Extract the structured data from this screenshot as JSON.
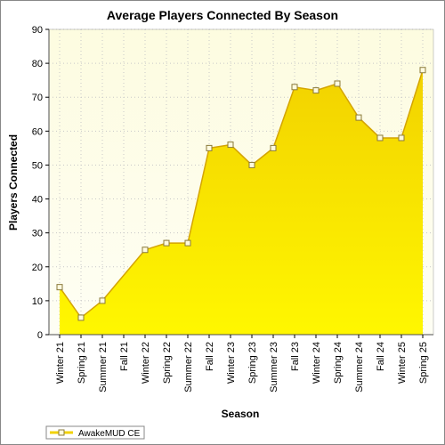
{
  "chart_data": {
    "type": "area",
    "title": "Average Players Connected By Season",
    "xlabel": "Season",
    "ylabel": "Players Connected",
    "ylim": [
      0,
      90
    ],
    "yticks": [
      0,
      10,
      20,
      30,
      40,
      50,
      60,
      70,
      80,
      90
    ],
    "categories": [
      "Winter 21",
      "Spring 21",
      "Summer 21",
      "Fall 21",
      "Winter 22",
      "Spring 22",
      "Summer 22",
      "Fall 22",
      "Winter 23",
      "Spring 23",
      "Summer 23",
      "Fall 23",
      "Winter 24",
      "Spring 24",
      "Summer 24",
      "Fall 24",
      "Winter 25",
      "Spring 25"
    ],
    "series": [
      {
        "name": "AwakeMUD CE",
        "values": [
          14,
          5,
          10,
          null,
          25,
          27,
          27,
          55,
          56,
          50,
          55,
          73,
          72,
          74,
          64,
          58,
          58,
          78
        ]
      }
    ],
    "grid": true,
    "legend": "bottom-left",
    "colors": {
      "plot_background_top": "#fdfce0",
      "plot_background_bottom": "#fefef4",
      "fill_top": "#f2d200",
      "fill_bottom": "#fff700",
      "line": "#d4a400",
      "marker_fill": "#fffbe0",
      "marker_stroke": "#8a7a3a",
      "grid": "#c8c8c8"
    }
  }
}
